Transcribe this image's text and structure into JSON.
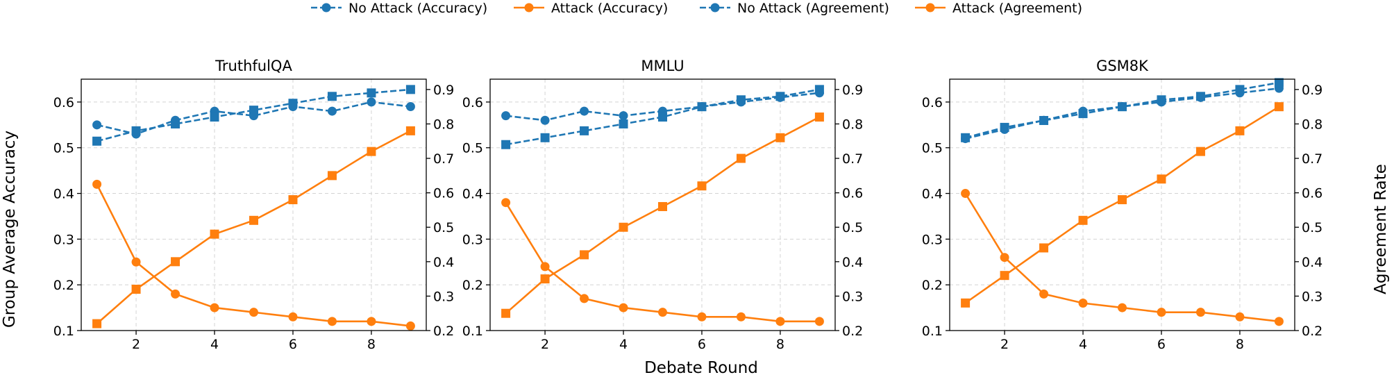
{
  "figure": {
    "xlabel": "Debate Round",
    "ylabel_left": "Group Average Accuracy",
    "ylabel_right": "Agreement Rate"
  },
  "legend": {
    "placement": "top-center",
    "entries": [
      {
        "label": "No Attack (Accuracy)",
        "color": "#1f77b4",
        "marker": "circle",
        "linestyle": "dashed"
      },
      {
        "label": "Attack (Accuracy)",
        "color": "#ff7f0e",
        "marker": "circle",
        "linestyle": "solid"
      },
      {
        "label": "No Attack (Agreement)",
        "color": "#1f77b4",
        "marker": "circle",
        "linestyle": "dashed"
      },
      {
        "label": "Attack (Agreement)",
        "color": "#ff7f0e",
        "marker": "circle",
        "linestyle": "solid"
      }
    ]
  },
  "chart_data": [
    {
      "type": "line",
      "title": "TruthfulQA",
      "x": [
        1,
        2,
        3,
        4,
        5,
        6,
        7,
        8,
        9
      ],
      "xticks": [
        2,
        4,
        6,
        8
      ],
      "ylim_left": [
        0.1,
        0.65
      ],
      "yticks_left": [
        0.1,
        0.2,
        0.3,
        0.4,
        0.5,
        0.6
      ],
      "ylim_right": [
        0.2,
        0.93
      ],
      "yticks_right": [
        0.2,
        0.3,
        0.4,
        0.5,
        0.6,
        0.7,
        0.8,
        0.9
      ],
      "grid": true,
      "series": [
        {
          "name": "No Attack (Accuracy)",
          "axis": "left",
          "color": "#1f77b4",
          "marker": "circle",
          "linestyle": "dashed",
          "values": [
            0.55,
            0.53,
            0.56,
            0.58,
            0.57,
            0.59,
            0.58,
            0.6,
            0.59
          ]
        },
        {
          "name": "Attack (Accuracy)",
          "axis": "left",
          "color": "#ff7f0e",
          "marker": "circle",
          "linestyle": "solid",
          "values": [
            0.42,
            0.25,
            0.18,
            0.15,
            0.14,
            0.13,
            0.12,
            0.12,
            0.11
          ]
        },
        {
          "name": "No Attack (Agreement)",
          "axis": "right",
          "color": "#1f77b4",
          "marker": "square",
          "linestyle": "dashed",
          "values": [
            0.75,
            0.78,
            0.8,
            0.82,
            0.84,
            0.86,
            0.88,
            0.89,
            0.9
          ]
        },
        {
          "name": "Attack (Agreement)",
          "axis": "right",
          "color": "#ff7f0e",
          "marker": "square",
          "linestyle": "solid",
          "values": [
            0.22,
            0.32,
            0.4,
            0.48,
            0.52,
            0.58,
            0.65,
            0.72,
            0.78
          ]
        }
      ]
    },
    {
      "type": "line",
      "title": "MMLU",
      "x": [
        1,
        2,
        3,
        4,
        5,
        6,
        7,
        8,
        9
      ],
      "xticks": [
        2,
        4,
        6,
        8
      ],
      "ylim_left": [
        0.1,
        0.65
      ],
      "yticks_left": [
        0.1,
        0.2,
        0.3,
        0.4,
        0.5,
        0.6
      ],
      "ylim_right": [
        0.2,
        0.93
      ],
      "yticks_right": [
        0.2,
        0.3,
        0.4,
        0.5,
        0.6,
        0.7,
        0.8,
        0.9
      ],
      "grid": true,
      "series": [
        {
          "name": "No Attack (Accuracy)",
          "axis": "left",
          "color": "#1f77b4",
          "marker": "circle",
          "linestyle": "dashed",
          "values": [
            0.57,
            0.56,
            0.58,
            0.57,
            0.58,
            0.59,
            0.6,
            0.61,
            0.62
          ]
        },
        {
          "name": "Attack (Accuracy)",
          "axis": "left",
          "color": "#ff7f0e",
          "marker": "circle",
          "linestyle": "solid",
          "values": [
            0.38,
            0.24,
            0.17,
            0.15,
            0.14,
            0.13,
            0.13,
            0.12,
            0.12
          ]
        },
        {
          "name": "No Attack (Agreement)",
          "axis": "right",
          "color": "#1f77b4",
          "marker": "square",
          "linestyle": "dashed",
          "values": [
            0.74,
            0.76,
            0.78,
            0.8,
            0.82,
            0.85,
            0.87,
            0.88,
            0.9
          ]
        },
        {
          "name": "Attack (Agreement)",
          "axis": "right",
          "color": "#ff7f0e",
          "marker": "square",
          "linestyle": "solid",
          "values": [
            0.25,
            0.35,
            0.42,
            0.5,
            0.56,
            0.62,
            0.7,
            0.76,
            0.82
          ]
        }
      ]
    },
    {
      "type": "line",
      "title": "GSM8K",
      "x": [
        1,
        2,
        3,
        4,
        5,
        6,
        7,
        8,
        9
      ],
      "xticks": [
        2,
        4,
        6,
        8
      ],
      "ylim_left": [
        0.1,
        0.65
      ],
      "yticks_left": [
        0.1,
        0.2,
        0.3,
        0.4,
        0.5,
        0.6
      ],
      "ylim_right": [
        0.2,
        0.93
      ],
      "yticks_right": [
        0.2,
        0.3,
        0.4,
        0.5,
        0.6,
        0.7,
        0.8,
        0.9
      ],
      "grid": true,
      "series": [
        {
          "name": "No Attack (Accuracy)",
          "axis": "left",
          "color": "#1f77b4",
          "marker": "circle",
          "linestyle": "dashed",
          "values": [
            0.52,
            0.54,
            0.56,
            0.58,
            0.59,
            0.6,
            0.61,
            0.62,
            0.63
          ]
        },
        {
          "name": "Attack (Accuracy)",
          "axis": "left",
          "color": "#ff7f0e",
          "marker": "circle",
          "linestyle": "solid",
          "values": [
            0.4,
            0.26,
            0.18,
            0.16,
            0.15,
            0.14,
            0.14,
            0.13,
            0.12
          ]
        },
        {
          "name": "No Attack (Agreement)",
          "axis": "right",
          "color": "#1f77b4",
          "marker": "square",
          "linestyle": "dashed",
          "values": [
            0.76,
            0.79,
            0.81,
            0.83,
            0.85,
            0.87,
            0.88,
            0.9,
            0.92
          ]
        },
        {
          "name": "Attack (Agreement)",
          "axis": "right",
          "color": "#ff7f0e",
          "marker": "square",
          "linestyle": "solid",
          "values": [
            0.28,
            0.36,
            0.44,
            0.52,
            0.58,
            0.64,
            0.72,
            0.78,
            0.85
          ]
        }
      ]
    }
  ]
}
